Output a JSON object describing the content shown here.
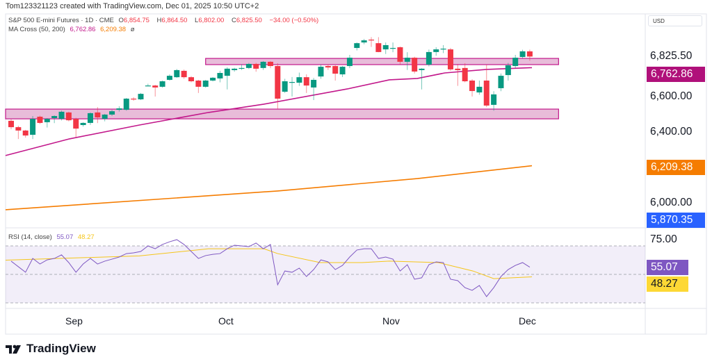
{
  "attribution": "Tom123321123 created with TradingView.com, Dec 01, 2025 10:50 UTC+2",
  "legend": {
    "symbol": "S&P 500 E-mini Futures · 1D · CME",
    "o_label": "O",
    "o": "6,854.75",
    "h_label": "H",
    "h": "6,864.50",
    "l_label": "L",
    "l": "6,802.00",
    "c_label": "C",
    "c": "6,825.50",
    "change": "−34.00 (−0.50%)",
    "ma_title": "MA Cross (50, 200)",
    "ma50": "6,762.86",
    "ma200": "6,209.38",
    "ma_extra": "ø",
    "rsi_title": "RSI (14, close)",
    "rsi": "55.07",
    "rsi_ma": "48.27"
  },
  "price_scale": {
    "currency": "USD",
    "ticks": [
      "6,825.50",
      "6,600.00",
      "6,400.00",
      "6,000.00"
    ],
    "badges": {
      "ma50": "6,762.86",
      "ma200": "6,209.38",
      "low": "5,870.35"
    },
    "rsi_tick": "75.00",
    "rsi_badges": {
      "rsi": "55.07",
      "rsi_ma": "48.27"
    }
  },
  "time_axis": [
    "Sep",
    "Oct",
    "Nov",
    "Dec"
  ],
  "brand": "TradingView",
  "colors": {
    "up": "#089981",
    "down": "#f23645",
    "ma50": "#c2188b",
    "ma200": "#f57c00",
    "rsi": "#7e57c2",
    "rsi_ma": "#f5c518",
    "zone": "#e8bcd9",
    "low_badge": "#2962ff"
  },
  "chart_data": {
    "type": "candlestick",
    "columns": [
      "open",
      "high",
      "low",
      "close"
    ],
    "candles": [
      [
        6463,
        6472,
        6415,
        6427
      ],
      [
        6427,
        6435,
        6360,
        6408
      ],
      [
        6408,
        6412,
        6368,
        6380
      ],
      [
        6384,
        6490,
        6360,
        6474
      ],
      [
        6486,
        6492,
        6445,
        6451
      ],
      [
        6455,
        6478,
        6425,
        6474
      ],
      [
        6478,
        6494,
        6450,
        6490
      ],
      [
        6474,
        6520,
        6465,
        6514
      ],
      [
        6510,
        6514,
        6460,
        6466
      ],
      [
        6474,
        6480,
        6370,
        6419
      ],
      [
        6439,
        6455,
        6430,
        6451
      ],
      [
        6451,
        6510,
        6440,
        6506
      ],
      [
        6510,
        6540,
        6450,
        6482
      ],
      [
        6474,
        6502,
        6460,
        6498
      ],
      [
        6498,
        6525,
        6490,
        6517
      ],
      [
        6525,
        6545,
        6515,
        6533
      ],
      [
        6525,
        6592,
        6520,
        6588
      ],
      [
        6588,
        6596,
        6576,
        6584
      ],
      [
        6584,
        6620,
        6580,
        6615
      ],
      [
        6662,
        6672,
        6658,
        6662
      ],
      [
        6662,
        6666,
        6600,
        6651
      ],
      [
        6655,
        6690,
        6650,
        6686
      ],
      [
        6694,
        6725,
        6690,
        6717
      ],
      [
        6709,
        6755,
        6705,
        6749
      ],
      [
        6745,
        6752,
        6700,
        6709
      ],
      [
        6709,
        6715,
        6680,
        6686
      ],
      [
        6690,
        6694,
        6620,
        6655
      ],
      [
        6655,
        6694,
        6650,
        6690
      ],
      [
        6690,
        6710,
        6685,
        6706
      ],
      [
        6702,
        6745,
        6680,
        6733
      ],
      [
        6717,
        6765,
        6640,
        6757
      ],
      [
        6749,
        6762,
        6740,
        6757
      ],
      [
        6761,
        6782,
        6750,
        6761
      ],
      [
        6761,
        6790,
        6755,
        6784
      ],
      [
        6784,
        6790,
        6740,
        6757
      ],
      [
        6761,
        6800,
        6750,
        6796
      ],
      [
        6796,
        6800,
        6760,
        6772
      ],
      [
        6772,
        6788,
        6530,
        6588
      ],
      [
        6627,
        6700,
        6620,
        6686
      ],
      [
        6682,
        6710,
        6600,
        6682
      ],
      [
        6678,
        6735,
        6660,
        6709
      ],
      [
        6709,
        6725,
        6620,
        6662
      ],
      [
        6651,
        6705,
        6580,
        6694
      ],
      [
        6713,
        6780,
        6700,
        6768
      ],
      [
        6772,
        6782,
        6750,
        6764
      ],
      [
        6772,
        6776,
        6690,
        6729
      ],
      [
        6725,
        6772,
        6710,
        6768
      ],
      [
        6772,
        6835,
        6760,
        6819
      ],
      [
        6874,
        6905,
        6860,
        6901
      ],
      [
        6905,
        6925,
        6895,
        6917
      ],
      [
        6921,
        6935,
        6880,
        6917
      ],
      [
        6901,
        6935,
        6850,
        6851
      ],
      [
        6866,
        6905,
        6840,
        6890
      ],
      [
        6874,
        6905,
        6850,
        6874
      ],
      [
        6878,
        6882,
        6780,
        6796
      ],
      [
        6796,
        6850,
        6750,
        6819
      ],
      [
        6819,
        6825,
        6730,
        6741
      ],
      [
        6749,
        6760,
        6640,
        6757
      ],
      [
        6780,
        6865,
        6770,
        6851
      ],
      [
        6851,
        6878,
        6830,
        6866
      ],
      [
        6870,
        6890,
        6845,
        6870
      ],
      [
        6866,
        6874,
        6745,
        6753
      ],
      [
        6757,
        6784,
        6660,
        6749
      ],
      [
        6761,
        6788,
        6680,
        6686
      ],
      [
        6690,
        6698,
        6600,
        6631
      ],
      [
        6623,
        6690,
        6610,
        6655
      ],
      [
        6690,
        6780,
        6540,
        6549
      ],
      [
        6553,
        6630,
        6520,
        6612
      ],
      [
        6647,
        6730,
        6630,
        6717
      ],
      [
        6721,
        6790,
        6690,
        6776
      ],
      [
        6772,
        6835,
        6760,
        6819
      ],
      [
        6823,
        6864,
        6815,
        6855
      ],
      [
        6854.75,
        6864.5,
        6802,
        6825.5
      ]
    ],
    "ma50": [
      [
        -0.8,
        6267
      ],
      [
        8.1,
        6361
      ],
      [
        17.8,
        6439
      ],
      [
        27.4,
        6510
      ],
      [
        35.1,
        6557
      ],
      [
        46.7,
        6643
      ],
      [
        52.5,
        6694
      ],
      [
        56.4,
        6702
      ],
      [
        60.2,
        6733
      ],
      [
        66,
        6753
      ],
      [
        72.3,
        6762.86
      ]
    ],
    "ma200": [
      [
        -0.8,
        5961
      ],
      [
        37,
        6067
      ],
      [
        56.4,
        6137
      ],
      [
        72.3,
        6209.38
      ]
    ],
    "zones": [
      {
        "from": 6780,
        "to": 6815,
        "start": 27,
        "end": 76
      },
      {
        "from": 6474,
        "to": 6529,
        "start": -0.8,
        "end": 76
      }
    ],
    "rsi": [
      59.3,
      55.4,
      51.5,
      61.2,
      57.3,
      60.2,
      61.2,
      63.7,
      58.3,
      51.5,
      57.3,
      61.2,
      57.3,
      59.3,
      60.7,
      62.2,
      64.6,
      65.1,
      66.1,
      70.0,
      68.0,
      71.0,
      72.9,
      74.4,
      71.0,
      66.1,
      61.2,
      63.2,
      64.1,
      64.6,
      68.0,
      70.5,
      70.0,
      69.5,
      72.0,
      68.0,
      71.0,
      42.7,
      52.4,
      51.5,
      54.4,
      48.5,
      53.4,
      60.2,
      58.8,
      53.4,
      56.3,
      62.2,
      67.1,
      68.0,
      68.0,
      61.2,
      62.2,
      60.7,
      52.4,
      56.8,
      46.6,
      47.6,
      56.8,
      58.8,
      58.3,
      46.6,
      45.6,
      40.7,
      38.8,
      42.2,
      34.4,
      40.7,
      48.5,
      53.4,
      56.3,
      58.3,
      55.07
    ],
    "rsi_ma": [
      [
        -0.8,
        60
      ],
      [
        17.8,
        63
      ],
      [
        27.4,
        68
      ],
      [
        35.1,
        68
      ],
      [
        37,
        64.6
      ],
      [
        42.9,
        58.3
      ],
      [
        48.7,
        58.3
      ],
      [
        52.5,
        59.3
      ],
      [
        59.3,
        58.3
      ],
      [
        64.1,
        52.4
      ],
      [
        67,
        47
      ],
      [
        72.3,
        48.27
      ]
    ],
    "rsi_levels": [
      70,
      50,
      30
    ],
    "x_ticks": [
      {
        "label": "Sep",
        "index": 9
      },
      {
        "label": "Oct",
        "index": 30
      },
      {
        "label": "Nov",
        "index": 53
      },
      {
        "label": "Dec",
        "index": 72
      }
    ]
  }
}
